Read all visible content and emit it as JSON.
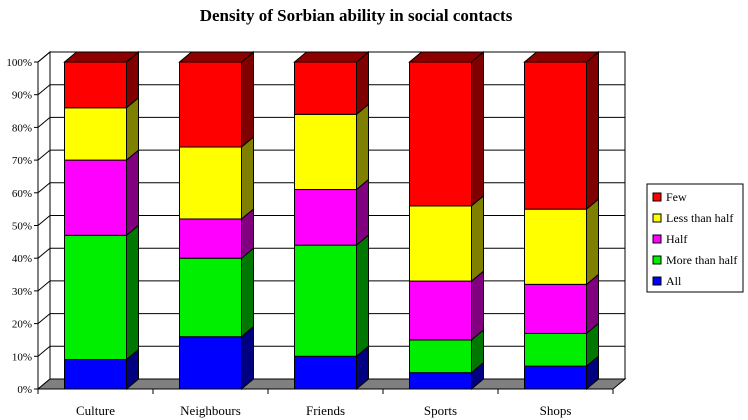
{
  "chart_data": {
    "type": "bar",
    "stacked": true,
    "percent": true,
    "three_d": true,
    "title": "Density of Sorbian ability in social contacts",
    "xlabel": "",
    "ylabel": "",
    "ylim": [
      0,
      100
    ],
    "y_ticks": [
      "0%",
      "10%",
      "20%",
      "30%",
      "40%",
      "50%",
      "60%",
      "70%",
      "80%",
      "90%",
      "100%"
    ],
    "grid": true,
    "legend_position": "right",
    "categories": [
      "Culture",
      "Neighbours",
      "Friends",
      "Sports",
      "Shops"
    ],
    "series": [
      {
        "name": "All",
        "color": "#0000ff",
        "values": [
          9,
          16,
          10,
          5,
          7
        ]
      },
      {
        "name": "More than half",
        "color": "#00ee00",
        "values": [
          38,
          24,
          34,
          10,
          10
        ]
      },
      {
        "name": "Half",
        "color": "#ff00ff",
        "values": [
          23,
          12,
          17,
          18,
          15
        ]
      },
      {
        "name": "Less than half",
        "color": "#ffff00",
        "values": [
          16,
          22,
          23,
          23,
          23
        ]
      },
      {
        "name": "Few",
        "color": "#ff0000",
        "values": [
          14,
          26,
          16,
          44,
          45
        ]
      }
    ]
  }
}
